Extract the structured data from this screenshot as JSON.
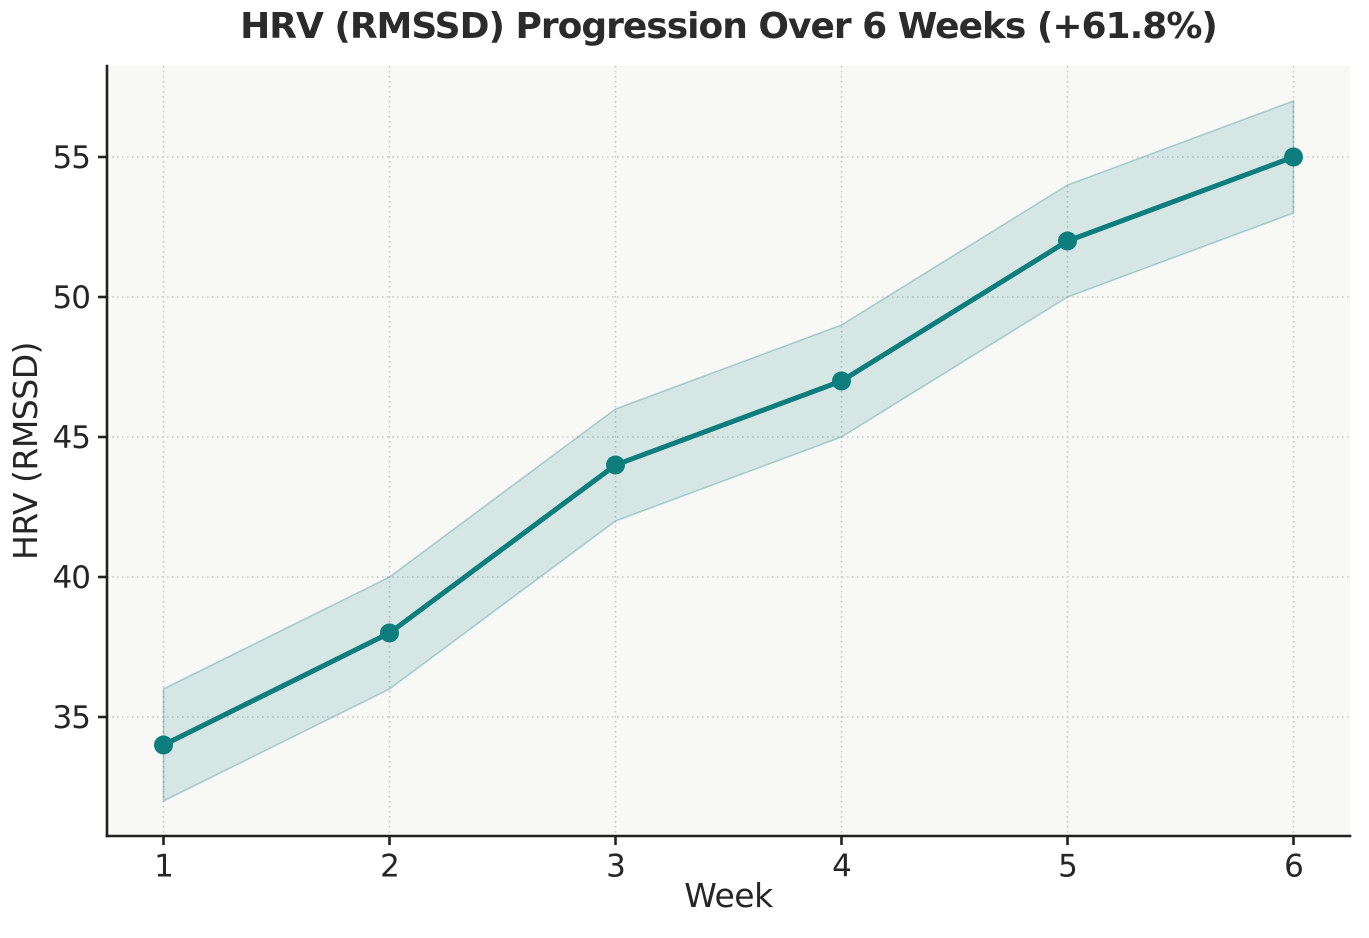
{
  "chart_data": {
    "type": "line",
    "title": "HRV (RMSSD) Progression Over 6 Weeks (+61.8%)",
    "xlabel": "Week",
    "ylabel": "HRV (RMSSD)",
    "x": [
      1,
      2,
      3,
      4,
      5,
      6
    ],
    "series": [
      {
        "name": "HRV (RMSSD)",
        "values": [
          34,
          38,
          44,
          47,
          52,
          55
        ],
        "band_lower": [
          32,
          36,
          42,
          45,
          50,
          53
        ],
        "band_upper": [
          36,
          40,
          46,
          49,
          54,
          57
        ]
      }
    ],
    "x_ticks": [
      "1",
      "2",
      "3",
      "4",
      "5",
      "6"
    ],
    "y_ticks": [
      "35",
      "40",
      "45",
      "50",
      "55"
    ],
    "xlim": [
      0.75,
      6.25
    ],
    "ylim": [
      30.75,
      58.25
    ],
    "grid": true,
    "grid_style": "dotted",
    "legend_position": "none",
    "colors": {
      "line": "#0d7d7d",
      "marker": "#0d7d7d",
      "band": "#0d7d7d",
      "band_fill_opacity": 0.15,
      "band_edge_opacity": 0.3,
      "plot_background": "#f8f8f6",
      "figure_background": "#ffffff",
      "grid_line": "#c9c9c9",
      "axis_spine": "#212121",
      "tick_text": "#262626",
      "title_text": "#2b2b2b"
    }
  }
}
